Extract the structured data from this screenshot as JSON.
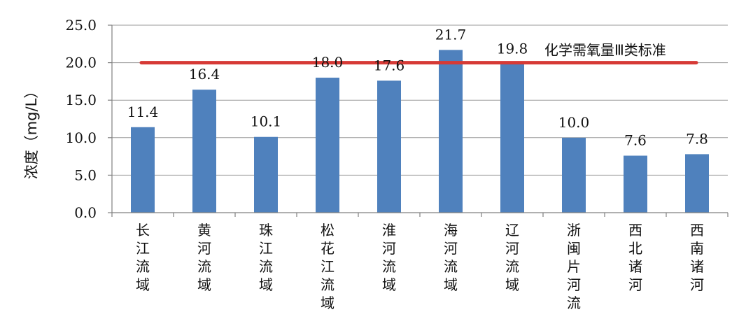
{
  "chart_data": {
    "type": "bar",
    "title": "",
    "xlabel": "",
    "ylabel": "浓度（mg/L）",
    "ylim": [
      0,
      25
    ],
    "ytick_values": [
      0,
      5,
      10,
      15,
      20,
      25
    ],
    "ytick_labels": [
      "0.0",
      "5.0",
      "10.0",
      "15.0",
      "20.0",
      "25.0"
    ],
    "grid": true,
    "categories": [
      "长江流域",
      "黄河流域",
      "珠江流域",
      "松花江流域",
      "淮河流域",
      "海河流域",
      "辽河流域",
      "浙闽片河流",
      "西北诸河",
      "西南诸河"
    ],
    "values": [
      11.4,
      16.4,
      10.1,
      18.0,
      17.6,
      21.7,
      19.8,
      10.0,
      7.6,
      7.8
    ],
    "value_labels": [
      "11.4",
      "16.4",
      "10.1",
      "18.0",
      "17.6",
      "21.7",
      "19.8",
      "10.0",
      "7.6",
      "7.8"
    ],
    "reference_line": {
      "value": 20,
      "label": "化学需氧量Ⅲ类标准",
      "color": "#d63a36"
    },
    "colors": {
      "bar": "#4f81bd",
      "grid": "#9a9a9a",
      "axis": "#808080"
    }
  }
}
